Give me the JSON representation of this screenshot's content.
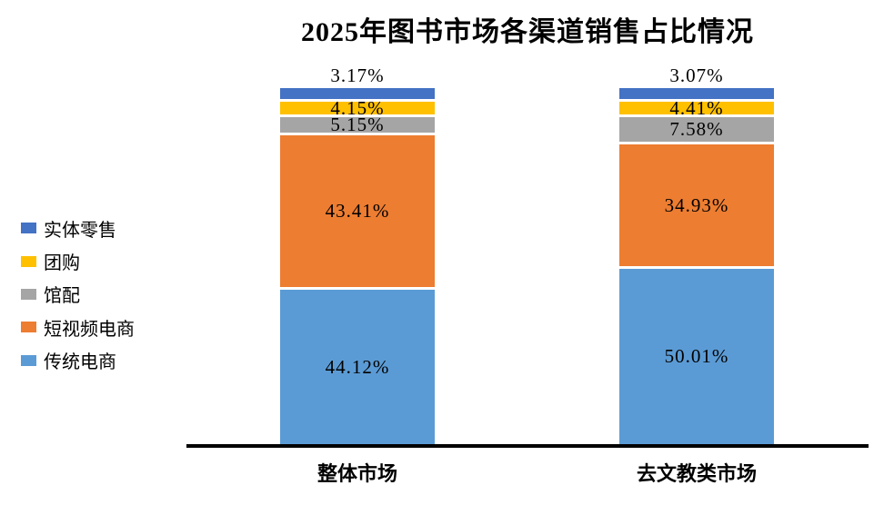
{
  "chart_data": {
    "type": "bar",
    "stacked": true,
    "orientation": "vertical",
    "title": "2025年图书市场各渠道销售占比情况",
    "categories": [
      "整体市场",
      "去文教类市场"
    ],
    "series": [
      {
        "name": "实体零售",
        "color": "#4472C4",
        "values": [
          3.17,
          3.07
        ],
        "labels": [
          "3.17%",
          "3.07%"
        ],
        "label_placement": "above"
      },
      {
        "name": "团购",
        "color": "#FFC000",
        "values": [
          4.15,
          4.41
        ],
        "labels": [
          "4.15%",
          "4.41%"
        ],
        "label_placement": "inside"
      },
      {
        "name": "馆配",
        "color": "#A5A5A5",
        "values": [
          5.15,
          7.58
        ],
        "labels": [
          "5.15%",
          "7.58%"
        ],
        "label_placement": "inside"
      },
      {
        "name": "短视频电商",
        "color": "#ED7D31",
        "values": [
          43.41,
          34.93
        ],
        "labels": [
          "43.41%",
          "34.93%"
        ],
        "label_placement": "inside"
      },
      {
        "name": "传统电商",
        "color": "#5B9BD5",
        "values": [
          44.12,
          50.01
        ],
        "labels": [
          "44.12%",
          "50.01%"
        ],
        "label_placement": "inside"
      }
    ],
    "stack_order_top_to_bottom": [
      "实体零售",
      "团购",
      "馆配",
      "短视频电商",
      "传统电商"
    ],
    "legend_position": "left",
    "ylim": [
      0,
      100
    ],
    "grid": false,
    "unit": "%",
    "axis_color": "#000000",
    "background_color": "#FFFFFF",
    "title_color": "#000000"
  }
}
